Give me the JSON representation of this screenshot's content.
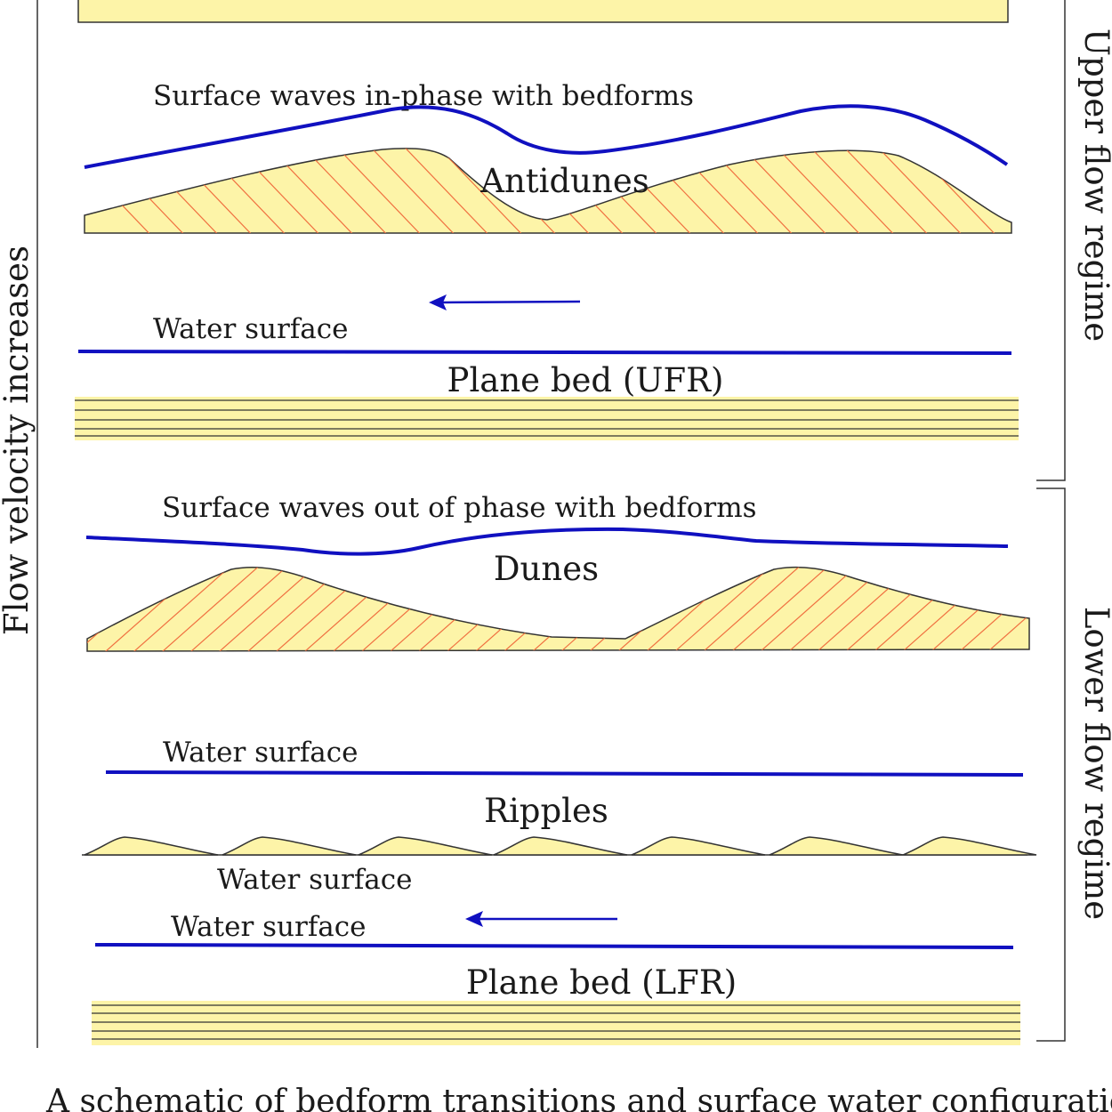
{
  "side_labels": {
    "left": "Flow velocity increases",
    "upper_right": "Upper flow regime",
    "lower_right": "Lower flow regime"
  },
  "panels": {
    "antidunes": {
      "note": "Surface waves in-phase with bedforms",
      "name": "Antidunes"
    },
    "plane_bed_ufr": {
      "water": "Water surface",
      "name": "Plane bed (UFR)"
    },
    "dunes": {
      "note": "Surface waves out of phase with bedforms",
      "name": "Dunes"
    },
    "ripples": {
      "water": "Water surface",
      "name": "Ripples",
      "below_water": "Water surface"
    },
    "plane_bed_lfr": {
      "water": "Water surface",
      "name": "Plane bed (LFR)"
    }
  },
  "caption": "A schematic of bedform transitions and surface water configurations for",
  "colors": {
    "sediment_fill": "#fdf4a8",
    "water_line": "#1010c0",
    "cross_bedding": "#f07040",
    "outline": "#333333"
  }
}
